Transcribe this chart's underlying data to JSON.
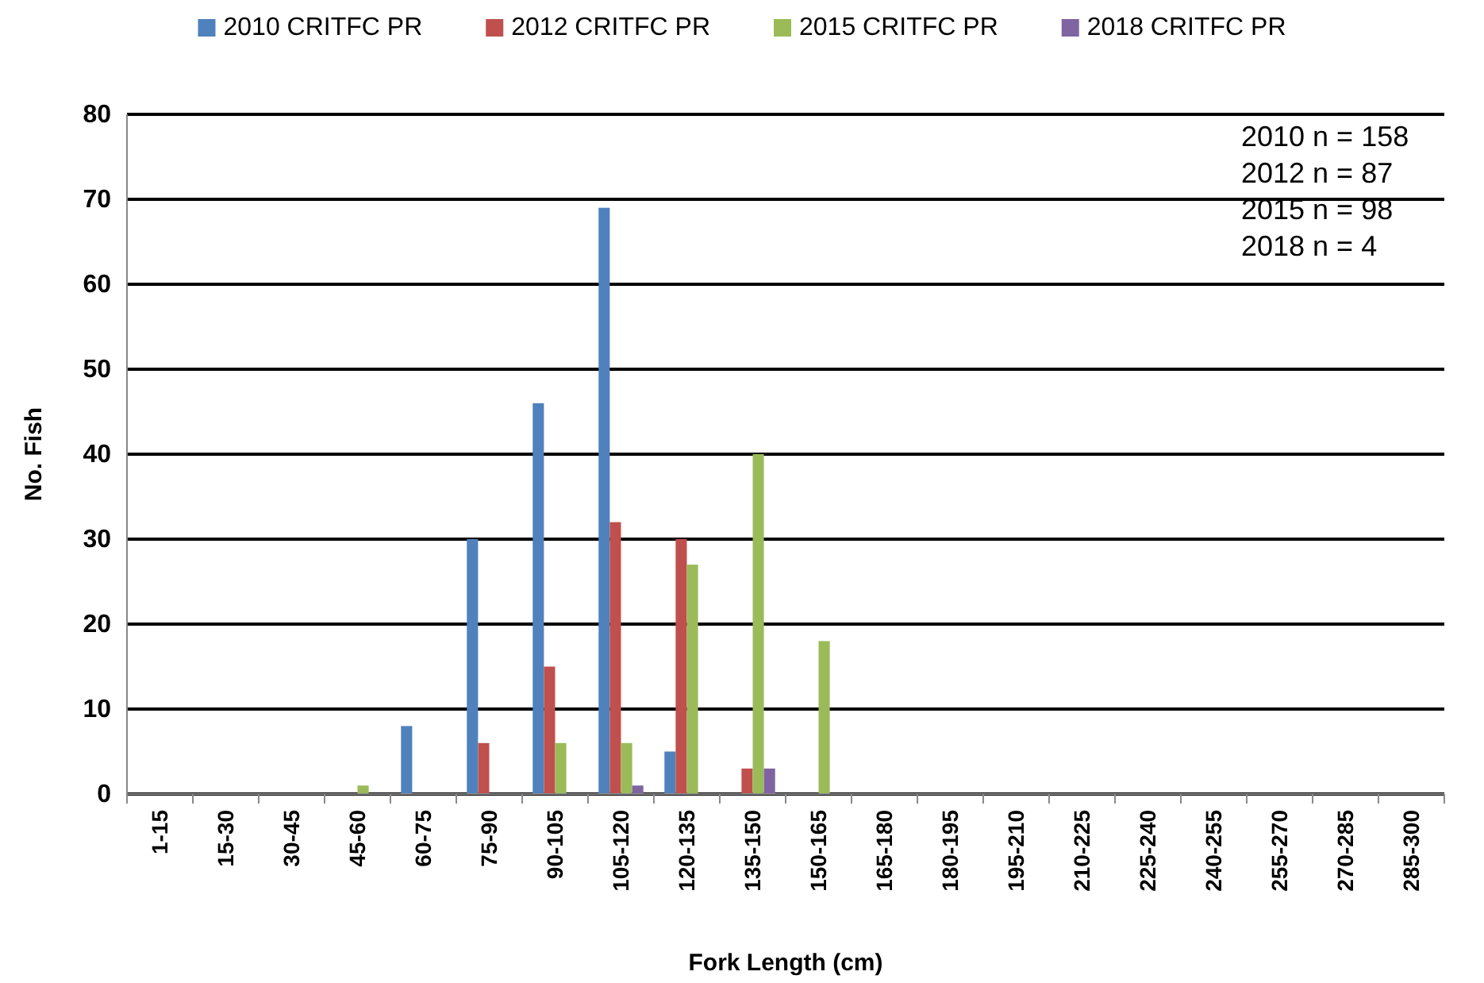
{
  "chart_data": {
    "type": "bar",
    "xlabel": "Fork Length (cm)",
    "ylabel": "No. Fish",
    "categories": [
      "1-15",
      "15-30",
      "30-45",
      "45-60",
      "60-75",
      "75-90",
      "90-105",
      "105-120",
      "120-135",
      "135-150",
      "150-165",
      "165-180",
      "180-195",
      "195-210",
      "210-225",
      "225-240",
      "240-255",
      "255-270",
      "270-285",
      "285-300"
    ],
    "series": [
      {
        "name": "2010 CRITFC PR",
        "color": "#4f81bd",
        "values": [
          0,
          0,
          0,
          0,
          8,
          30,
          46,
          69,
          5,
          0,
          0,
          0,
          0,
          0,
          0,
          0,
          0,
          0,
          0,
          0
        ]
      },
      {
        "name": "2012 CRITFC PR",
        "color": "#c0504d",
        "values": [
          0,
          0,
          0,
          0,
          0,
          6,
          15,
          32,
          30,
          3,
          0,
          0,
          0,
          0,
          0,
          0,
          0,
          0,
          0,
          0
        ]
      },
      {
        "name": "2015 CRITFC PR",
        "color": "#9bbb59",
        "values": [
          0,
          0,
          0,
          1,
          0,
          0,
          6,
          6,
          27,
          40,
          18,
          0,
          0,
          0,
          0,
          0,
          0,
          0,
          0,
          0
        ]
      },
      {
        "name": "2018 CRITFC PR",
        "color": "#8064a2",
        "values": [
          0,
          0,
          0,
          0,
          0,
          0,
          0,
          1,
          0,
          3,
          0,
          0,
          0,
          0,
          0,
          0,
          0,
          0,
          0,
          0
        ]
      }
    ],
    "ylim": [
      0,
      80
    ],
    "yticks": [
      0,
      10,
      20,
      30,
      40,
      50,
      60,
      70,
      80
    ],
    "grid": "y",
    "legend": "top",
    "annotations": [
      "2010 n = 158",
      "2012 n = 87",
      "2015 n = 98",
      "2018 n = 4"
    ]
  }
}
